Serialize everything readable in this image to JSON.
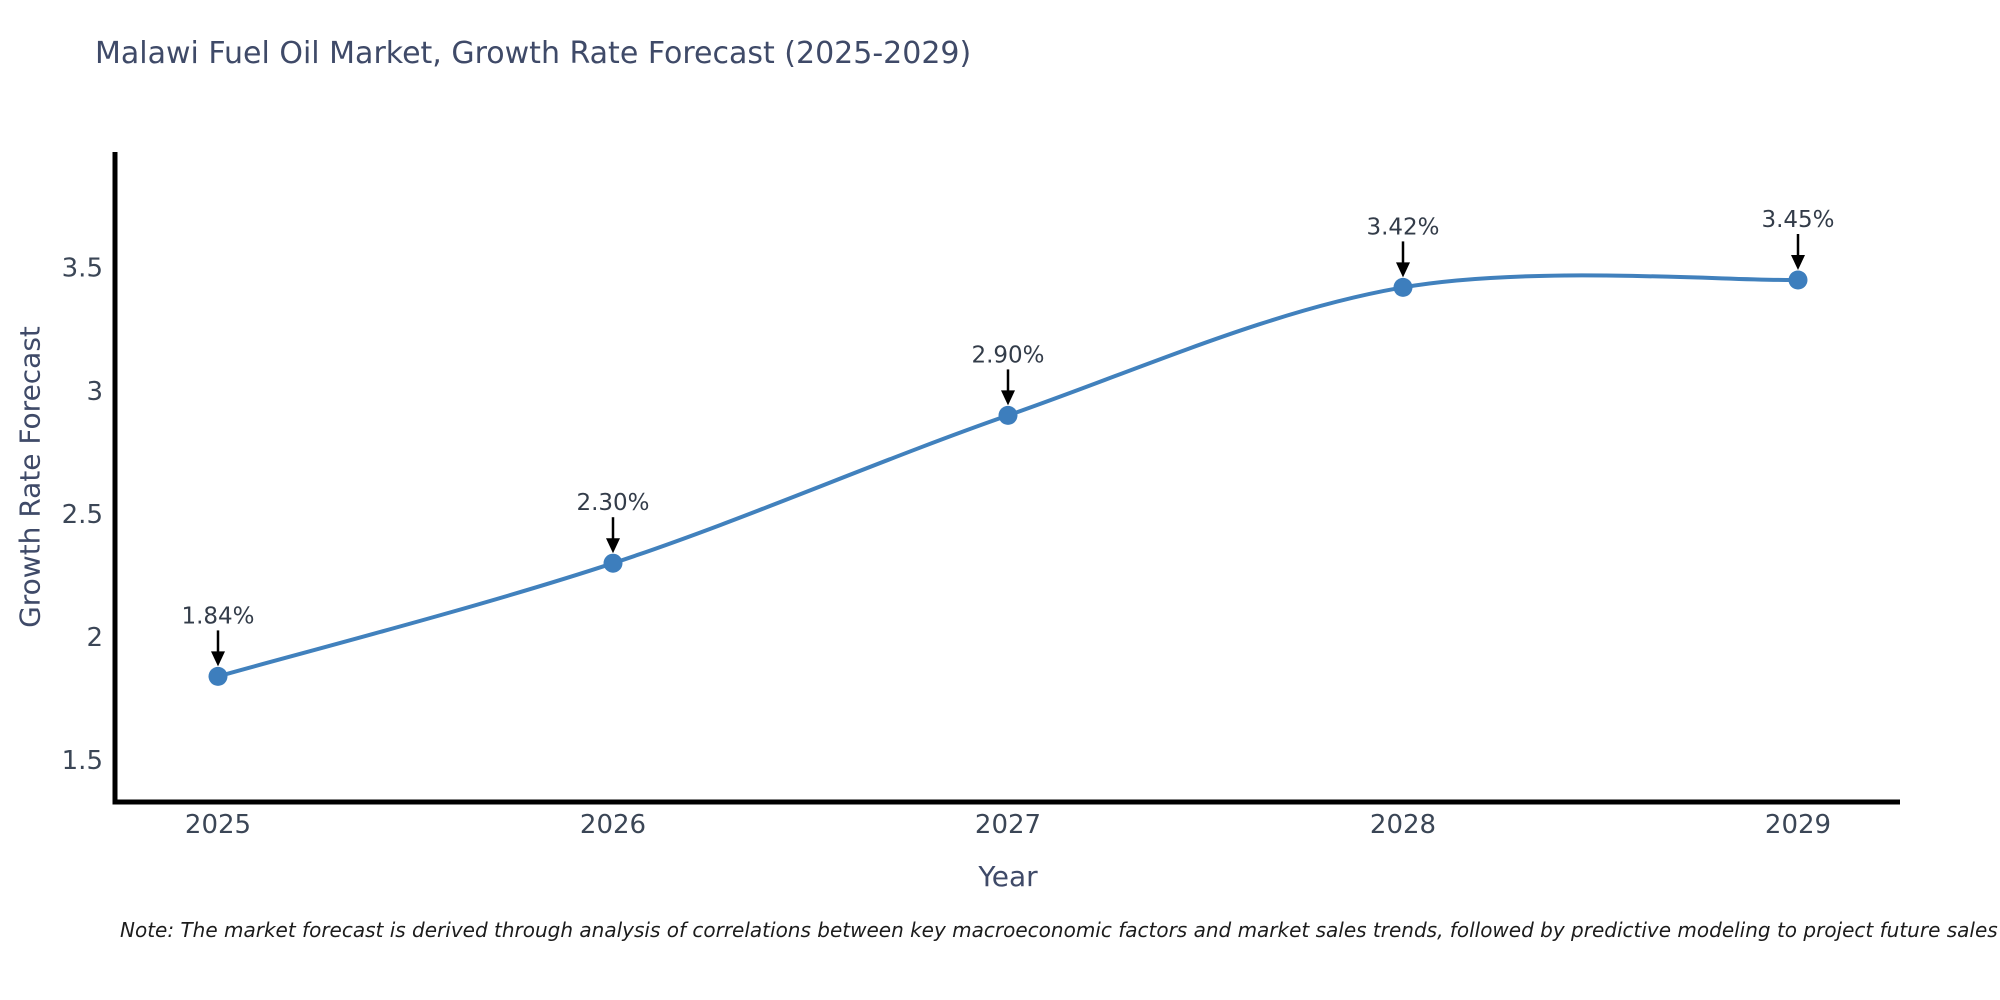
{
  "figure": {
    "note": "Note: The market forecast is derived through analysis of correlations between key macroeconomic factors and market sales trends, followed by predictive modeling to project future sales"
  },
  "chart_data": {
    "type": "line",
    "title": "Malawi Fuel Oil Market, Growth Rate Forecast (2025-2029)",
    "xlabel": "Year",
    "ylabel": "Growth Rate Forecast",
    "categories": [
      "2025",
      "2026",
      "2027",
      "2028",
      "2029"
    ],
    "values": [
      1.84,
      2.3,
      2.9,
      3.42,
      3.45
    ],
    "point_labels": [
      "1.84%",
      "2.30%",
      "2.90%",
      "3.42%",
      "3.45%"
    ],
    "yticks": [
      1.5,
      2.0,
      2.5,
      3.0,
      3.5
    ],
    "ytick_labels": [
      "1.5",
      "2",
      "2.5",
      "3",
      "3.5"
    ],
    "ylim": [
      1.33,
      3.97
    ],
    "grid": false,
    "legend": "none",
    "smooth": true,
    "line_color": "#4181bd",
    "marker_color": "#3d7ebd",
    "axis_color": "#000000",
    "annotation_arrow_color": "#000000"
  }
}
